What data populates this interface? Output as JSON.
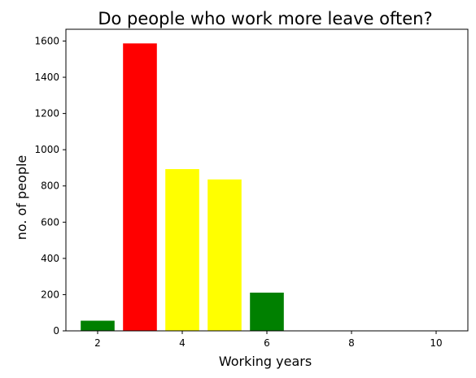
{
  "chart_data": {
    "type": "bar",
    "title": "Do people who work more leave often?",
    "xlabel": "Working years",
    "ylabel": "no. of people",
    "x": [
      2,
      3,
      4,
      5,
      6,
      7
    ],
    "values": [
      56,
      1587,
      893,
      836,
      211,
      0
    ],
    "colors": [
      "#008000",
      "#ff0000",
      "#ffff00",
      "#ffff00",
      "#008000",
      "#008000"
    ],
    "xlim": [
      1.25,
      10.75
    ],
    "ylim": [
      0,
      1665
    ],
    "xticks": [
      2,
      4,
      6,
      8,
      10
    ],
    "yticks": [
      0,
      200,
      400,
      600,
      800,
      1000,
      1200,
      1400,
      1600
    ],
    "grid": false,
    "legend": "none"
  }
}
